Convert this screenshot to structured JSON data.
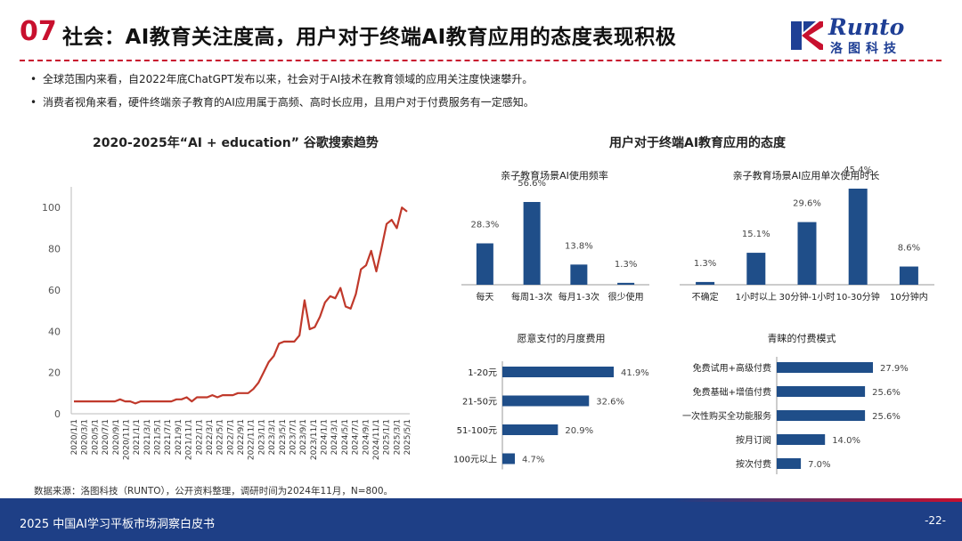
{
  "header": {
    "number": "07",
    "title": "社会：AI教育关注度高，用户对于终端AI教育应用的态度表现积极",
    "logo_word": "Runto",
    "logo_cn": "洛图科技"
  },
  "bullets": [
    "全球范围内来看，自2022年底ChatGPT发布以来，社会对于AI技术在教育领域的应用关注度快速攀升。",
    "消费者视角来看，硬件终端亲子教育的AI应用属于高频、高时长应用，且用户对于付费服务有一定感知。"
  ],
  "right_section_title": "用户对于终端AI教育应用的态度",
  "source": "数据来源：洛图科技（RUNTO），公开资料整理，调研时间为2024年11月，N=800。",
  "footer": {
    "text": "2025 中国AI学习平板市场洞察白皮书",
    "page": "-22-"
  },
  "colors": {
    "accent_red": "#c8102e",
    "bar_blue": "#1f4e89",
    "footer_blue": "#1e3f86"
  },
  "chart_data": [
    {
      "type": "line",
      "title": "2020-2025年“AI + education” 谷歌搜索趋势",
      "ylim": [
        0,
        110
      ],
      "yticks": [
        0,
        20,
        40,
        60,
        80,
        100
      ],
      "xtick_labels": [
        "2020/1/1",
        "2020/3/1",
        "2020/5/1",
        "2020/7/1",
        "2020/9/1",
        "2020/11/1",
        "2021/1/1",
        "2021/3/1",
        "2021/5/1",
        "2021/7/1",
        "2021/9/1",
        "2021/11/1",
        "2022/1/1",
        "2022/3/1",
        "2022/5/1",
        "2022/7/1",
        "2022/9/1",
        "2022/11/1",
        "2023/1/1",
        "2023/3/1",
        "2023/5/1",
        "2023/7/1",
        "2023/9/1",
        "2023/11/1",
        "2024/1/1",
        "2024/3/1",
        "2024/5/1",
        "2024/7/1",
        "2024/9/1",
        "2024/11/1",
        "2025/1/1",
        "2025/3/1",
        "2025/5/1"
      ],
      "line_color": "#c0392b",
      "values": [
        6,
        6,
        6,
        6,
        6,
        6,
        6,
        6,
        6,
        7,
        6,
        6,
        5,
        6,
        6,
        6,
        6,
        6,
        6,
        6,
        7,
        7,
        8,
        6,
        8,
        8,
        8,
        9,
        8,
        9,
        9,
        9,
        10,
        10,
        10,
        12,
        15,
        20,
        25,
        28,
        34,
        35,
        35,
        35,
        38,
        55,
        41,
        42,
        47,
        54,
        57,
        56,
        61,
        52,
        51,
        58,
        70,
        72,
        79,
        69,
        80,
        92,
        94,
        90,
        100,
        98
      ]
    },
    {
      "type": "bar",
      "title": "亲子教育场景AI使用频率",
      "categories": [
        "每天",
        "每周1-3次",
        "每月1-3次",
        "很少使用"
      ],
      "values": [
        28.3,
        56.6,
        13.8,
        1.3
      ],
      "labels": [
        "28.3%",
        "56.6%",
        "13.8%",
        "1.3%"
      ]
    },
    {
      "type": "bar",
      "title": "亲子教育场景AI应用单次使用时长",
      "categories": [
        "不确定",
        "1小时以上",
        "30分钟-1小时",
        "10-30分钟",
        "10分钟内"
      ],
      "values": [
        1.3,
        15.1,
        29.6,
        45.4,
        8.6
      ],
      "labels": [
        "1.3%",
        "15.1%",
        "29.6%",
        "45.4%",
        "8.6%"
      ]
    },
    {
      "type": "bar",
      "orientation": "horizontal",
      "title": "愿意支付的月度费用",
      "categories": [
        "1-20元",
        "21-50元",
        "51-100元",
        "100元以上"
      ],
      "values": [
        41.9,
        32.6,
        20.9,
        4.7
      ],
      "labels": [
        "41.9%",
        "32.6%",
        "20.9%",
        "4.7%"
      ]
    },
    {
      "type": "bar",
      "orientation": "horizontal",
      "title": "青睐的付费模式",
      "categories": [
        "免费试用+高级付费",
        "免费基础+增值付费",
        "一次性购买全功能服务",
        "按月订阅",
        "按次付费"
      ],
      "values": [
        27.9,
        25.6,
        25.6,
        14.0,
        7.0
      ],
      "labels": [
        "27.9%",
        "25.6%",
        "25.6%",
        "14.0%",
        "7.0%"
      ]
    }
  ]
}
